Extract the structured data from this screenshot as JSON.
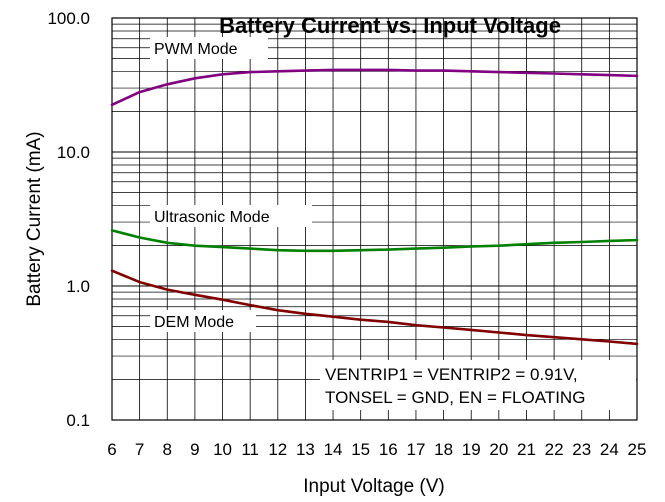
{
  "chart_data": {
    "type": "line",
    "title": "Battery Current vs. Input Voltage",
    "xlabel": "Input Voltage (V)",
    "ylabel": "Battery Current (mA)",
    "x_scale": "linear",
    "y_scale": "log",
    "xlim": [
      6,
      25
    ],
    "ylim": [
      0.1,
      100
    ],
    "x_ticks": [
      "6",
      "7",
      "8",
      "9",
      "10",
      "11",
      "12",
      "13",
      "14",
      "15",
      "16",
      "17",
      "18",
      "19",
      "20",
      "21",
      "22",
      "23",
      "24",
      "25"
    ],
    "y_ticks": [
      "0.1",
      "1.0",
      "10.0",
      "100.0"
    ],
    "grid": true,
    "series": [
      {
        "name": "PWM Mode",
        "color": "#800080",
        "x": [
          6,
          7,
          8,
          9,
          10,
          11,
          12,
          13,
          14,
          15,
          16,
          17,
          18,
          19,
          20,
          21,
          22,
          23,
          24,
          25
        ],
        "values": [
          22.5,
          28,
          32,
          35.5,
          38,
          39.5,
          40,
          40.5,
          41,
          41,
          41,
          40.5,
          40.5,
          40,
          39.5,
          39,
          38.5,
          38,
          37.5,
          37
        ]
      },
      {
        "name": "Ultrasonic Mode",
        "color": "#008000",
        "x": [
          6,
          7,
          8,
          9,
          10,
          11,
          12,
          13,
          14,
          15,
          16,
          17,
          18,
          19,
          20,
          21,
          22,
          23,
          24,
          25
        ],
        "values": [
          2.6,
          2.3,
          2.1,
          2.0,
          1.95,
          1.9,
          1.85,
          1.83,
          1.83,
          1.85,
          1.87,
          1.9,
          1.93,
          1.97,
          2.0,
          2.05,
          2.1,
          2.13,
          2.17,
          2.2
        ]
      },
      {
        "name": "DEM Mode",
        "color": "#800000",
        "x": [
          6,
          7,
          8,
          9,
          10,
          11,
          12,
          13,
          14,
          15,
          16,
          17,
          18,
          19,
          20,
          21,
          22,
          23,
          24,
          25
        ],
        "values": [
          1.3,
          1.07,
          0.94,
          0.86,
          0.79,
          0.72,
          0.66,
          0.62,
          0.59,
          0.56,
          0.54,
          0.51,
          0.49,
          0.47,
          0.45,
          0.43,
          0.415,
          0.4,
          0.385,
          0.37
        ]
      }
    ],
    "annotation": {
      "line1": "VENTRIP1 = VENTRIP2 = 0.91V,",
      "line2": "TONSEL = GND, EN = FLOATING"
    }
  }
}
